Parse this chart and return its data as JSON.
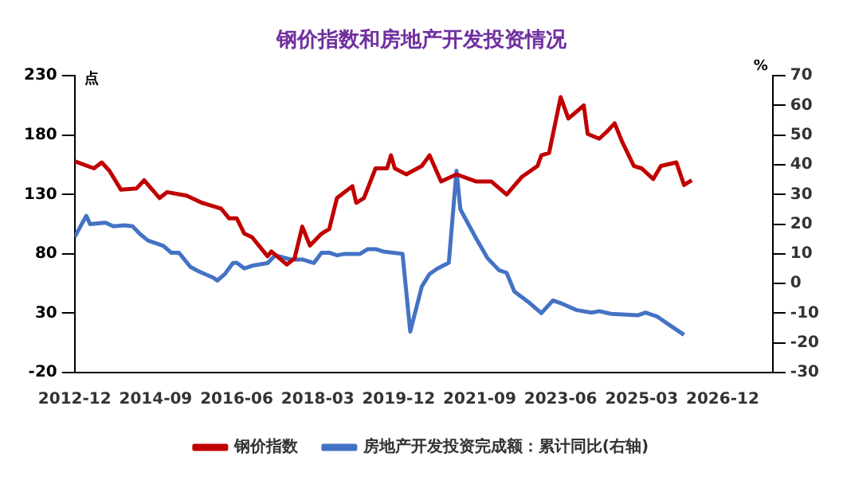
{
  "chart_data": {
    "type": "line",
    "title": "钢价指数和房地产开发投资情况",
    "ylabel": "点",
    "y2label": "%",
    "xlim": [
      "2012-12",
      "2028-01"
    ],
    "xticks": [
      "2012-12",
      "2014-09",
      "2016-06",
      "2018-03",
      "2019-12",
      "2021-09",
      "2023-06",
      "2025-03",
      "2026-12"
    ],
    "ylim": [
      -20,
      230
    ],
    "yticks": [
      -20,
      30,
      80,
      130,
      180,
      230
    ],
    "y2lim": [
      -30,
      70
    ],
    "y2ticks": [
      -30,
      -20,
      -10,
      0,
      10,
      20,
      30,
      40,
      50,
      60,
      70
    ],
    "grid": false,
    "legend": "bottom",
    "marker": "none",
    "line_style": "solid",
    "series": [
      {
        "name": "钢价指数",
        "color": "#c00000",
        "x": [
          "2012-12",
          "2013-05",
          "2013-07",
          "2013-09",
          "2013-12",
          "2014-04",
          "2014-06",
          "2014-10",
          "2014-12",
          "2015-05",
          "2015-09",
          "2016-02",
          "2016-04",
          "2016-06",
          "2016-08",
          "2016-10",
          "2017-02",
          "2017-03",
          "2017-07",
          "2017-09",
          "2017-11",
          "2018-01",
          "2018-04",
          "2018-06",
          "2018-08",
          "2018-12",
          "2019-01",
          "2019-03",
          "2019-06",
          "2019-09",
          "2019-10",
          "2019-11",
          "2020-02",
          "2020-06",
          "2020-08",
          "2020-11",
          "2021-03",
          "2021-08",
          "2021-12",
          "2022-04",
          "2022-08",
          "2022-12",
          "2023-01",
          "2023-03",
          "2023-06",
          "2023-08",
          "2023-12",
          "2024-01",
          "2024-04",
          "2024-06",
          "2024-08",
          "2024-10",
          "2025-01",
          "2025-03",
          "2025-06",
          "2025-08",
          "2025-12",
          "2026-02",
          "2026-04"
        ],
        "values": [
          158,
          152,
          157,
          150,
          134,
          135,
          142,
          127,
          132,
          129,
          123,
          118,
          110,
          110,
          97,
          94,
          78,
          82,
          71,
          76,
          103,
          87,
          97,
          101,
          127,
          137,
          123,
          127,
          152,
          152,
          163,
          152,
          147,
          154,
          163,
          141,
          147,
          141,
          141,
          130,
          145,
          154,
          163,
          165,
          212,
          194,
          205,
          181,
          177,
          183,
          190,
          174,
          154,
          152,
          143,
          154,
          157,
          138,
          142
        ]
      },
      {
        "name": "房地产开发投资完成额：累计同比(右轴)",
        "color": "#4472c4",
        "axis": "y2",
        "x": [
          "2012-12",
          "2013-03",
          "2013-04",
          "2013-08",
          "2013-10",
          "2014-01",
          "2014-03",
          "2014-05",
          "2014-07",
          "2014-11",
          "2015-01",
          "2015-03",
          "2015-06",
          "2015-08",
          "2015-12",
          "2016-01",
          "2016-03",
          "2016-05",
          "2016-06",
          "2016-08",
          "2016-10",
          "2017-02",
          "2017-04",
          "2017-08",
          "2017-11",
          "2018-02",
          "2018-04",
          "2018-06",
          "2018-08",
          "2018-10",
          "2019-02",
          "2019-04",
          "2019-06",
          "2019-08",
          "2020-01",
          "2020-03",
          "2020-06",
          "2020-08",
          "2020-10",
          "2021-01",
          "2021-03",
          "2021-04",
          "2021-08",
          "2021-11",
          "2022-02",
          "2022-04",
          "2022-06",
          "2022-10",
          "2023-01",
          "2023-04",
          "2023-06",
          "2023-10",
          "2024-02",
          "2024-04",
          "2024-07",
          "2025-02",
          "2025-04",
          "2025-07",
          "2025-10",
          "2026-02"
        ],
        "values": [
          15.7,
          22.8,
          20,
          20.5,
          19.3,
          19.6,
          19.3,
          16.6,
          14.5,
          12.7,
          10.4,
          10.4,
          5.6,
          4.2,
          1.9,
          1,
          3.3,
          6.9,
          7,
          5.1,
          6,
          6.9,
          9.5,
          8.1,
          8.1,
          6.9,
          10.4,
          10.4,
          9.5,
          10,
          10,
          11.6,
          11.6,
          10.8,
          10,
          -16.2,
          -1,
          3.2,
          5,
          7,
          38,
          25,
          15.4,
          8.6,
          4.5,
          3.6,
          -2.7,
          -6.6,
          -10,
          -5.7,
          -6.6,
          -8.9,
          -9.8,
          -9.3,
          -10.2,
          -10.7,
          -9.8,
          -11.1,
          -13.8,
          -17.3
        ]
      }
    ]
  }
}
